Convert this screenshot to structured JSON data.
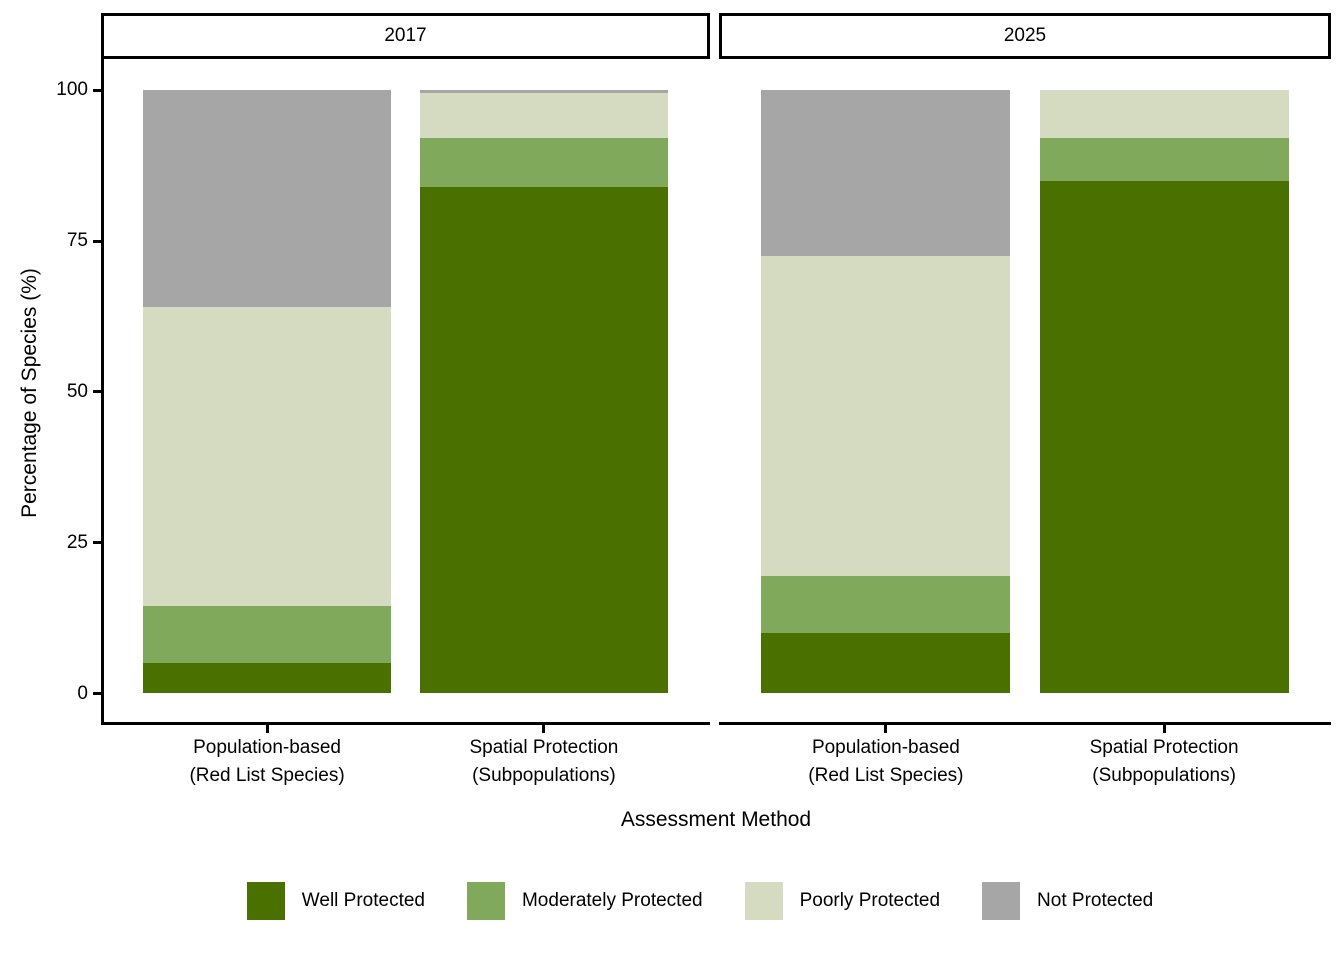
{
  "chart_data": {
    "type": "bar",
    "subtype": "stacked-percentage",
    "title": "",
    "xlabel": "Assessment Method",
    "ylabel": "Percentage of Species (%)",
    "ylim": [
      0,
      100
    ],
    "yticks": [
      0,
      25,
      50,
      75,
      100
    ],
    "grid": false,
    "legend_position": "bottom",
    "categories": [
      [
        "Population-based",
        "(Red List Species)"
      ],
      [
        "Spatial Protection",
        "(Subpopulations)"
      ]
    ],
    "series": [
      {
        "name": "Well Protected",
        "color": "#4A7000"
      },
      {
        "name": "Moderately Protected",
        "color": "#81A95C"
      },
      {
        "name": "Poorly Protected",
        "color": "#D4DBC1"
      },
      {
        "name": "Not Protected",
        "color": "#A6A6A6"
      }
    ],
    "facets": [
      {
        "label": "2017",
        "values": {
          "Well Protected": [
            5,
            84
          ],
          "Moderately Protected": [
            9.5,
            8
          ],
          "Poorly Protected": [
            49.5,
            7.5
          ],
          "Not Protected": [
            36,
            0.5
          ]
        }
      },
      {
        "label": "2025",
        "values": {
          "Well Protected": [
            10,
            85
          ],
          "Moderately Protected": [
            9.5,
            7
          ],
          "Poorly Protected": [
            53,
            8
          ],
          "Not Protected": [
            27.5,
            0
          ]
        }
      }
    ]
  },
  "axis_colors": {
    "line": "#000000",
    "text": "#000000"
  }
}
